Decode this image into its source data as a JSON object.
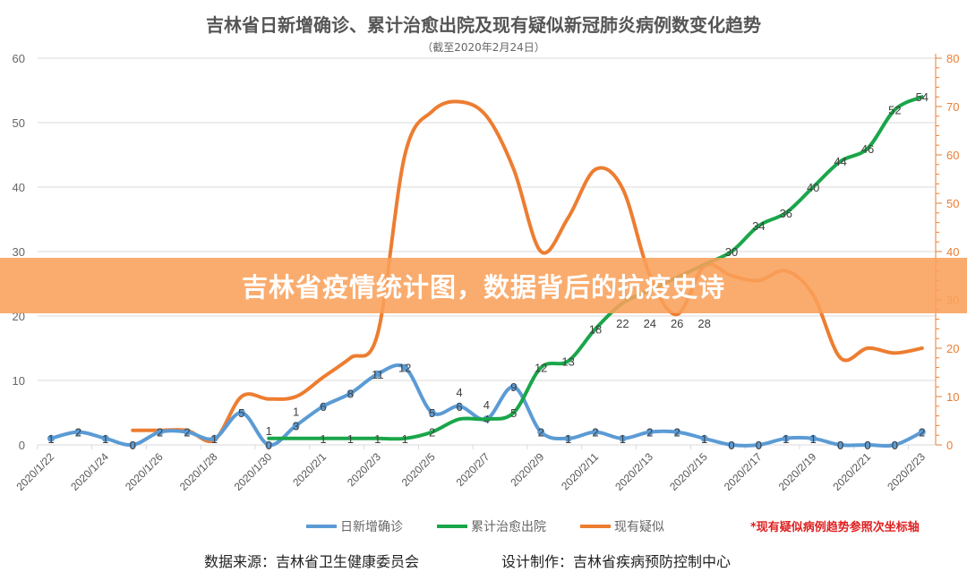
{
  "chart_data": {
    "type": "line",
    "title": "吉林省日新增确诊、累计治愈出院及现有疑似新冠肺炎病例数变化趋势",
    "subtitle": "（截至2020年2月24日）",
    "categories": [
      "2020/1/22",
      "2020/1/23",
      "2020/1/24",
      "2020/1/25",
      "2020/1/26",
      "2020/1/27",
      "2020/1/28",
      "2020/1/29",
      "2020/1/30",
      "2020/1/31",
      "2020/2/1",
      "2020/2/2",
      "2020/2/3",
      "2020/2/4",
      "2020/2/5",
      "2020/2/6",
      "2020/2/7",
      "2020/2/8",
      "2020/2/9",
      "2020/2/10",
      "2020/2/11",
      "2020/2/12",
      "2020/2/13",
      "2020/2/14",
      "2020/2/15",
      "2020/2/16",
      "2020/2/17",
      "2020/2/18",
      "2020/2/19",
      "2020/2/20",
      "2020/2/21",
      "2020/2/22",
      "2020/2/23"
    ],
    "tick_labels": [
      "2020/1/22",
      "2020/1/24",
      "2020/1/26",
      "2020/1/28",
      "2020/1/30",
      "2020/2/1",
      "2020/2/3",
      "2020/2/5",
      "2020/2/7",
      "2020/2/9",
      "2020/2/11",
      "2020/2/13",
      "2020/2/15",
      "2020/2/17",
      "2020/2/19",
      "2020/2/21",
      "2020/2/23"
    ],
    "y_left": {
      "range": [
        0,
        60
      ],
      "ticks": [
        0,
        10,
        20,
        30,
        40,
        50,
        60
      ]
    },
    "y_right": {
      "range": [
        0,
        80
      ],
      "ticks": [
        0,
        10,
        20,
        30,
        40,
        50,
        60,
        70,
        80
      ]
    },
    "series": [
      {
        "name": "日新增确诊",
        "color": "#5b9bd5",
        "axis": "left",
        "markers": true,
        "labels": true,
        "values": [
          1,
          2,
          1,
          0,
          2,
          2,
          1,
          5,
          0,
          3,
          6,
          8,
          11,
          12,
          5,
          6,
          4,
          9,
          2,
          1,
          2,
          1,
          2,
          2,
          1,
          0,
          0,
          1,
          1,
          0,
          0,
          0,
          2
        ]
      },
      {
        "name": "累计治愈出院",
        "color": "#1aa64a",
        "axis": "left",
        "markers": false,
        "labels": true,
        "values": [
          null,
          null,
          null,
          null,
          null,
          null,
          null,
          null,
          1,
          1,
          1,
          1,
          1,
          1,
          2,
          4,
          4,
          5,
          12,
          13,
          18,
          22,
          24,
          26,
          28,
          30,
          34,
          36,
          40,
          44,
          46,
          52,
          54
        ]
      },
      {
        "name": "现有疑似",
        "color": "#ed7d31",
        "axis": "right",
        "markers": false,
        "labels": false,
        "values": [
          null,
          null,
          null,
          3,
          3,
          3,
          1,
          10,
          9.5,
          10,
          14,
          18,
          23,
          60,
          69,
          71,
          68,
          57,
          40,
          47,
          57,
          53,
          35,
          27,
          37,
          35,
          34,
          36,
          31,
          18,
          20,
          19,
          20
        ]
      }
    ],
    "legend": "bottom",
    "note": "*现有疑似病例趋势参照次坐标轴"
  },
  "banner": "吉林省疫情统计图，数据背后的抗疫史诗",
  "footer": {
    "source": "数据来源：吉林省卫生健康委员会",
    "design": "设计制作：吉林省疾病预防控制中心"
  }
}
